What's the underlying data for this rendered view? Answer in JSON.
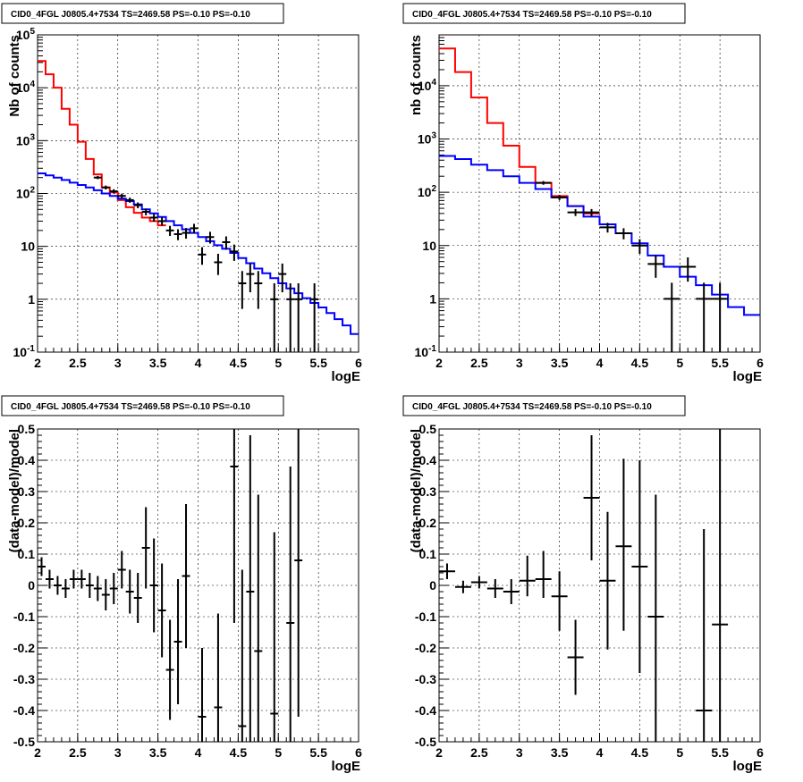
{
  "chart_data": [
    {
      "type": "line",
      "title": "CID0_4FGL J0805.4+7534 TS=2469.58 PS=-0.10 PS=-0.10",
      "xlabel": "logE",
      "ylabel": "Nb of counts",
      "yscale": "log",
      "xlim": [
        2,
        6
      ],
      "ylim": [
        0.1,
        100000
      ],
      "grid": true,
      "xticks": [
        "2",
        "2.5",
        "3",
        "3.5",
        "4",
        "4.5",
        "5",
        "5.5",
        "6"
      ],
      "yticks": [
        "10^-1",
        "1",
        "10",
        "10^2",
        "10^3",
        "10^4",
        "10^5"
      ],
      "bin_width": 0.1,
      "series": [
        {
          "style": "step",
          "color": "#ff0000",
          "x": [
            2.0,
            2.1,
            2.2,
            2.3,
            2.4,
            2.5,
            2.6,
            2.7,
            2.8,
            2.9,
            3.0,
            3.1,
            3.2,
            3.3,
            3.4,
            3.5
          ],
          "values": [
            32000,
            18000,
            10000,
            4000,
            2000,
            950,
            450,
            230,
            130,
            105,
            75,
            55,
            43,
            35,
            30,
            25
          ]
        },
        {
          "style": "step",
          "color": "#0000ff",
          "x": [
            2.0,
            2.1,
            2.2,
            2.3,
            2.4,
            2.5,
            2.6,
            2.7,
            2.8,
            2.9,
            3.0,
            3.1,
            3.2,
            3.3,
            3.4,
            3.5,
            3.6,
            3.7,
            3.8,
            3.9,
            4.0,
            4.1,
            4.2,
            4.3,
            4.4,
            4.5,
            4.6,
            4.7,
            4.8,
            4.9,
            5.0,
            5.1,
            5.2,
            5.3,
            5.4,
            5.5,
            5.6,
            5.7,
            5.8,
            5.9
          ],
          "values": [
            240,
            220,
            200,
            180,
            160,
            145,
            130,
            115,
            100,
            90,
            80,
            72,
            62,
            50,
            42,
            36,
            30,
            25,
            21,
            18,
            15,
            12.5,
            10.5,
            9,
            7.5,
            6,
            4.8,
            3.8,
            3.1,
            2.5,
            2,
            1.6,
            1.3,
            1.05,
            0.85,
            0.7,
            0.55,
            0.42,
            0.32,
            0.22
          ]
        },
        {
          "style": "points",
          "color": "#000000",
          "x": [
            2.75,
            2.85,
            2.95,
            3.05,
            3.15,
            3.25,
            3.35,
            3.45,
            3.55,
            3.65,
            3.75,
            3.85,
            3.95,
            4.05,
            4.15,
            4.25,
            4.35,
            4.45,
            4.55,
            4.65,
            4.75,
            4.95,
            5.05,
            5.15,
            5.25,
            5.45
          ],
          "values": [
            200,
            130,
            110,
            90,
            75,
            60,
            45,
            35,
            30,
            20,
            17,
            18,
            22,
            7,
            15,
            5,
            12,
            8,
            2,
            3,
            2,
            1,
            3,
            1,
            1,
            1
          ]
        }
      ]
    },
    {
      "type": "line",
      "title": "CID0_4FGL J0805.4+7534 TS=2469.58 PS=-0.10 PS=-0.10",
      "xlabel": "logE",
      "ylabel": "nb of counts",
      "yscale": "log",
      "xlim": [
        2,
        6
      ],
      "ylim": [
        0.1,
        90000
      ],
      "grid": true,
      "xticks": [
        "2",
        "2.5",
        "3",
        "3.5",
        "4",
        "4.5",
        "5",
        "5.5",
        "6"
      ],
      "yticks": [
        "10^-1",
        "1",
        "10",
        "10^2",
        "10^3",
        "10^4"
      ],
      "bin_width": 0.2,
      "series": [
        {
          "style": "step",
          "color": "#ff0000",
          "x": [
            2.0,
            2.2,
            2.4,
            2.6,
            2.8,
            3.0,
            3.2,
            3.4,
            3.6,
            3.8
          ],
          "values": [
            50000,
            18000,
            6000,
            2000,
            750,
            300,
            150,
            85,
            55,
            40
          ]
        },
        {
          "style": "step",
          "color": "#0000ff",
          "x": [
            2.0,
            2.2,
            2.4,
            2.6,
            2.8,
            3.0,
            3.2,
            3.4,
            3.6,
            3.8,
            4.0,
            4.2,
            4.4,
            4.6,
            4.8,
            5.0,
            5.2,
            5.4,
            5.6,
            5.8
          ],
          "values": [
            480,
            420,
            330,
            260,
            200,
            150,
            115,
            80,
            55,
            35,
            25,
            17,
            11,
            6.5,
            4,
            2.6,
            1.8,
            1.2,
            0.7,
            0.5
          ]
        },
        {
          "style": "points",
          "color": "#000000",
          "x": [
            3.3,
            3.5,
            3.7,
            3.9,
            4.1,
            4.3,
            4.5,
            4.7,
            4.9,
            5.1,
            5.3,
            5.5
          ],
          "values": [
            150,
            80,
            42,
            42,
            22,
            17,
            10,
            4.5,
            1,
            4,
            1,
            1
          ]
        }
      ]
    },
    {
      "type": "scatter",
      "title": "CID0_4FGL J0805.4+7534 TS=2469.58 PS=-0.10 PS=-0.10",
      "xlabel": "logE",
      "ylabel": "(data-model)/model",
      "xlim": [
        2,
        6
      ],
      "ylim": [
        -0.5,
        0.5
      ],
      "grid": true,
      "xticks": [
        "2",
        "2.5",
        "3",
        "3.5",
        "4",
        "4.5",
        "5",
        "5.5",
        "6"
      ],
      "yticks": [
        "-0.5",
        "-0.4",
        "-0.3",
        "-0.2",
        "-0.1",
        "0",
        "0.1",
        "0.2",
        "0.3",
        "0.4",
        "0.5"
      ],
      "bin_width": 0.1,
      "series": [
        {
          "color": "#000000",
          "x": [
            2.05,
            2.15,
            2.25,
            2.35,
            2.45,
            2.55,
            2.65,
            2.75,
            2.85,
            2.95,
            3.05,
            3.15,
            3.25,
            3.35,
            3.45,
            3.55,
            3.65,
            3.75,
            3.85,
            4.05,
            4.25,
            4.45,
            4.55,
            4.65,
            4.75,
            4.95,
            5.15,
            5.25
          ],
          "values": [
            0.06,
            0.02,
            0.0,
            -0.01,
            0.02,
            0.02,
            0.0,
            -0.01,
            -0.03,
            -0.01,
            0.05,
            -0.02,
            -0.04,
            0.12,
            0.0,
            -0.08,
            -0.27,
            -0.18,
            0.03,
            -0.42,
            -0.39,
            0.38,
            -0.45,
            -0.02,
            -0.21,
            -0.41,
            -0.12,
            0.08
          ],
          "err_low": [
            0.03,
            0.03,
            0.03,
            0.03,
            0.03,
            0.03,
            0.04,
            0.04,
            0.05,
            0.05,
            0.06,
            0.07,
            0.08,
            0.13,
            0.15,
            0.15,
            0.16,
            0.2,
            0.23,
            0.35,
            0.4,
            0.5,
            0.5,
            0.5,
            0.5,
            0.5,
            0.5,
            0.5
          ],
          "err_high": [
            0.03,
            0.03,
            0.03,
            0.03,
            0.03,
            0.03,
            0.04,
            0.04,
            0.05,
            0.05,
            0.06,
            0.07,
            0.08,
            0.13,
            0.15,
            0.15,
            0.16,
            0.2,
            0.23,
            0.22,
            0.3,
            0.5,
            0.5,
            0.5,
            0.5,
            0.58,
            0.5,
            0.5
          ]
        }
      ]
    },
    {
      "type": "scatter",
      "title": "CID0_4FGL J0805.4+7534 TS=2469.58 PS=-0.10 PS=-0.10",
      "xlabel": "logE",
      "ylabel": "(data-model)/model",
      "xlim": [
        2,
        6
      ],
      "ylim": [
        -0.5,
        0.5
      ],
      "grid": true,
      "xticks": [
        "2",
        "2.5",
        "3",
        "3.5",
        "4",
        "4.5",
        "5",
        "5.5",
        "6"
      ],
      "yticks": [
        "-0.5",
        "-0.4",
        "-0.3",
        "-0.2",
        "-0.1",
        "0",
        "0.1",
        "0.2",
        "0.3",
        "0.4",
        "0.5"
      ],
      "bin_width": 0.2,
      "series": [
        {
          "color": "#000000",
          "x": [
            2.1,
            2.3,
            2.5,
            2.7,
            2.9,
            3.1,
            3.3,
            3.5,
            3.7,
            3.9,
            4.1,
            4.3,
            4.5,
            4.7,
            5.3,
            5.5
          ],
          "values": [
            0.045,
            -0.005,
            0.01,
            -0.01,
            -0.02,
            0.015,
            0.02,
            -0.035,
            -0.23,
            0.28,
            0.015,
            0.125,
            0.06,
            -0.1,
            -0.4,
            -0.125
          ],
          "err_low": [
            0.025,
            0.02,
            0.02,
            0.03,
            0.04,
            0.05,
            0.06,
            0.11,
            0.12,
            0.2,
            0.22,
            0.27,
            0.34,
            0.4,
            0.5,
            0.5
          ],
          "err_high": [
            0.025,
            0.02,
            0.02,
            0.03,
            0.04,
            0.08,
            0.09,
            0.08,
            0.12,
            0.2,
            0.22,
            0.28,
            0.34,
            0.39,
            0.58,
            0.8
          ]
        }
      ]
    }
  ]
}
